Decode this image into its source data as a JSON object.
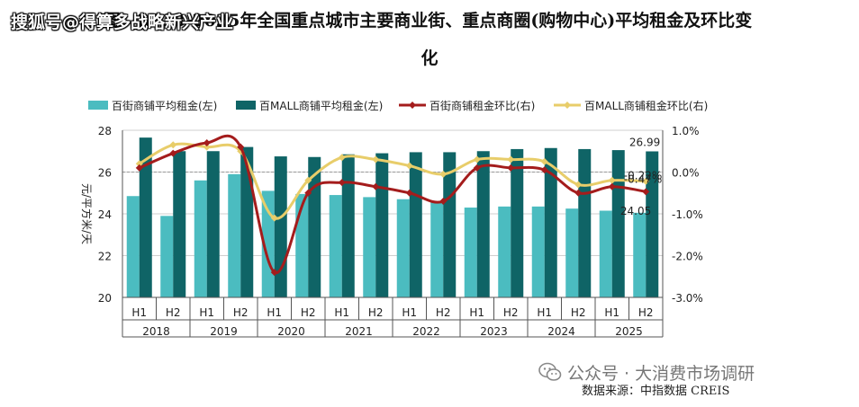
{
  "title_line1": "图：2018-2025年全国重点城市主要商业街、重点商圈(购物中心)平均租金及环比变",
  "title_line2": "化",
  "watermark_top": "搜狐号@得算多战略新兴产业",
  "watermark_bottom": "公众号 · 大消费市场调研",
  "source": "数据来源：中指数据 CREIS",
  "colors": {
    "street_bar": "#4bbcc0",
    "mall_bar": "#0f6466",
    "street_line": "#a41c1c",
    "mall_line": "#e8cd6a",
    "gridline": "#cfcfcf"
  },
  "chart_data": {
    "type": "bar+line",
    "legend": [
      "百街商铺平均租金(左)",
      "百MALL商铺平均租金(左)",
      "百街商铺租金环比(右)",
      "百MALL商铺租金环比(右)"
    ],
    "legend_position": "top",
    "ylabel_left": "元/平方米/天",
    "ylim_left": [
      20,
      28
    ],
    "yticks_left": [
      "20",
      "22",
      "24",
      "26",
      "28"
    ],
    "ylim_right": [
      -3.0,
      1.0
    ],
    "yticks_right": [
      "-3.0%",
      "-2.0%",
      "-1.0%",
      "0.0%",
      "1.0%"
    ],
    "gridlines": true,
    "years": [
      "2018",
      "2019",
      "2020",
      "2021",
      "2022",
      "2023",
      "2024",
      "2025"
    ],
    "halves": [
      "H1",
      "H2"
    ],
    "series": [
      {
        "name": "百街商铺平均租金(左)",
        "kind": "bar",
        "axis": "left",
        "values": [
          24.85,
          23.9,
          25.6,
          25.9,
          25.1,
          24.95,
          24.9,
          24.8,
          24.7,
          24.6,
          24.3,
          24.35,
          24.35,
          24.25,
          24.15,
          24.05
        ]
      },
      {
        "name": "百MALL商铺平均租金(左)",
        "kind": "bar",
        "axis": "left",
        "values": [
          27.65,
          27.0,
          27.0,
          27.2,
          26.75,
          26.72,
          26.85,
          26.9,
          26.95,
          26.95,
          27.0,
          27.1,
          27.15,
          27.1,
          27.05,
          26.99
        ]
      },
      {
        "name": "百街商铺租金环比(右)",
        "kind": "line",
        "axis": "right",
        "values": [
          0.1,
          0.45,
          0.7,
          0.6,
          -2.4,
          -0.5,
          -0.25,
          -0.35,
          -0.5,
          -0.7,
          0.1,
          0.1,
          0.05,
          -0.5,
          -0.35,
          -0.47
        ]
      },
      {
        "name": "百MALL商铺租金环比(右)",
        "kind": "line",
        "axis": "right",
        "values": [
          0.2,
          0.65,
          0.6,
          0.5,
          -1.1,
          -0.2,
          0.35,
          0.3,
          0.15,
          -0.05,
          0.3,
          0.3,
          0.25,
          -0.3,
          -0.2,
          -0.22
        ]
      }
    ],
    "annotations": [
      "26.99",
      "-0.22%",
      "-0.47%",
      "24.05"
    ]
  }
}
